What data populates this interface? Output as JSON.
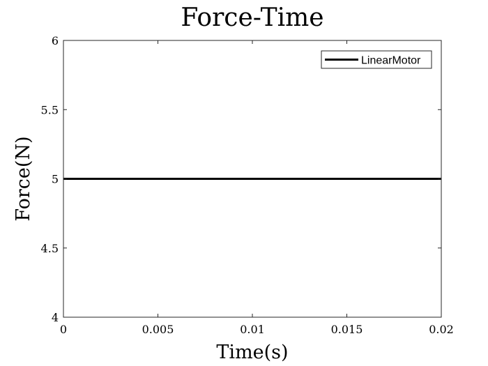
{
  "chart_data": {
    "type": "line",
    "title": "Force-Time",
    "xlabel": "Time(s)",
    "ylabel": "Force(N)",
    "xlim": [
      0,
      0.02
    ],
    "ylim": [
      4,
      6
    ],
    "xticks": [
      0,
      0.005,
      0.01,
      0.015,
      0.02
    ],
    "xtick_labels": [
      "0",
      "0.005",
      "0.01",
      "0.015",
      "0.02"
    ],
    "yticks": [
      4,
      4.5,
      5,
      5.5,
      6
    ],
    "ytick_labels": [
      "4",
      "4.5",
      "5",
      "5.5",
      "6"
    ],
    "grid": false,
    "legend_position": "top-right",
    "series": [
      {
        "name": "LinearMotor",
        "color": "#000000",
        "x": [
          0,
          0.02
        ],
        "y": [
          5,
          5
        ]
      }
    ]
  }
}
